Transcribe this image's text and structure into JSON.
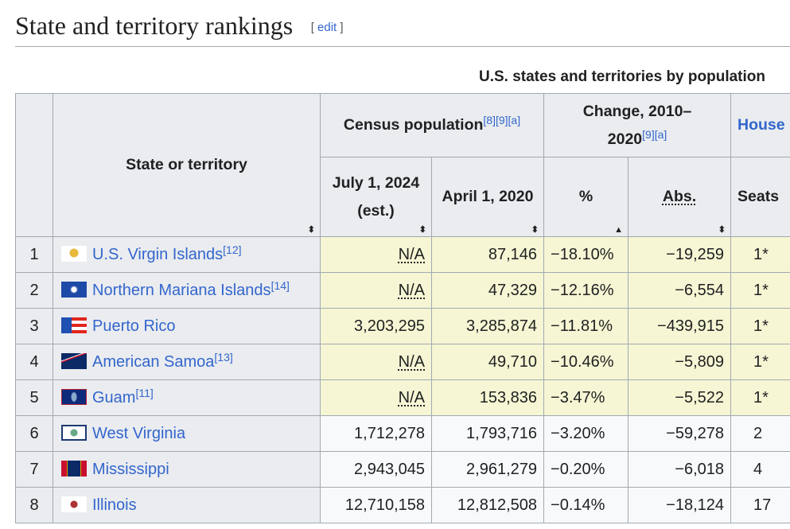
{
  "section": {
    "title": "State and territory rankings",
    "edit_label": "edit"
  },
  "table": {
    "caption": "U.S. states and territories by population",
    "headers": {
      "state": "State or territory",
      "census": "Census population",
      "census_refs": "[8][9][a]",
      "change": "Change, 2010–2020",
      "change_refs": "[9][a]",
      "house": "House",
      "july2024": "July 1, 2024 (est.)",
      "april2020": "April 1, 2020",
      "pct": "%",
      "abs": "Abs.",
      "seats": "Seats"
    },
    "sort_icons": {
      "default": "sort-both-icon",
      "active": "sort-ascending-icon"
    },
    "rows": [
      {
        "rank": "1",
        "name": "U.S. Virgin Islands",
        "ref": "[12]",
        "flag": "us-virgin-islands-flag",
        "july2024": "N/A",
        "april2020": "87,146",
        "pct": "−18.10%",
        "abs": "−19,259",
        "seats": "1*",
        "type": "terr"
      },
      {
        "rank": "2",
        "name": "Northern Mariana Islands",
        "ref": "[14]",
        "flag": "northern-mariana-islands-flag",
        "july2024": "N/A",
        "april2020": "47,329",
        "pct": "−12.16%",
        "abs": "−6,554",
        "seats": "1*",
        "type": "terr"
      },
      {
        "rank": "3",
        "name": "Puerto Rico",
        "ref": "",
        "flag": "puerto-rico-flag",
        "july2024": "3,203,295",
        "april2020": "3,285,874",
        "pct": "−11.81%",
        "abs": "−439,915",
        "seats": "1*",
        "type": "terr"
      },
      {
        "rank": "4",
        "name": "American Samoa",
        "ref": "[13]",
        "flag": "american-samoa-flag",
        "july2024": "N/A",
        "april2020": "49,710",
        "pct": "−10.46%",
        "abs": "−5,809",
        "seats": "1*",
        "type": "terr"
      },
      {
        "rank": "5",
        "name": "Guam",
        "ref": "[11]",
        "flag": "guam-flag",
        "july2024": "N/A",
        "april2020": "153,836",
        "pct": "−3.47%",
        "abs": "−5,522",
        "seats": "1*",
        "type": "terr"
      },
      {
        "rank": "6",
        "name": "West Virginia",
        "ref": "",
        "flag": "west-virginia-flag",
        "july2024": "1,712,278",
        "april2020": "1,793,716",
        "pct": "−3.20%",
        "abs": "−59,278",
        "seats": "2",
        "type": "state"
      },
      {
        "rank": "7",
        "name": "Mississippi",
        "ref": "",
        "flag": "mississippi-flag",
        "july2024": "2,943,045",
        "april2020": "2,961,279",
        "pct": "−0.20%",
        "abs": "−6,018",
        "seats": "4",
        "type": "state"
      },
      {
        "rank": "8",
        "name": "Illinois",
        "ref": "",
        "flag": "illinois-flag",
        "july2024": "12,710,158",
        "april2020": "12,812,508",
        "pct": "−0.14%",
        "abs": "−18,124",
        "seats": "17",
        "type": "state"
      }
    ]
  }
}
